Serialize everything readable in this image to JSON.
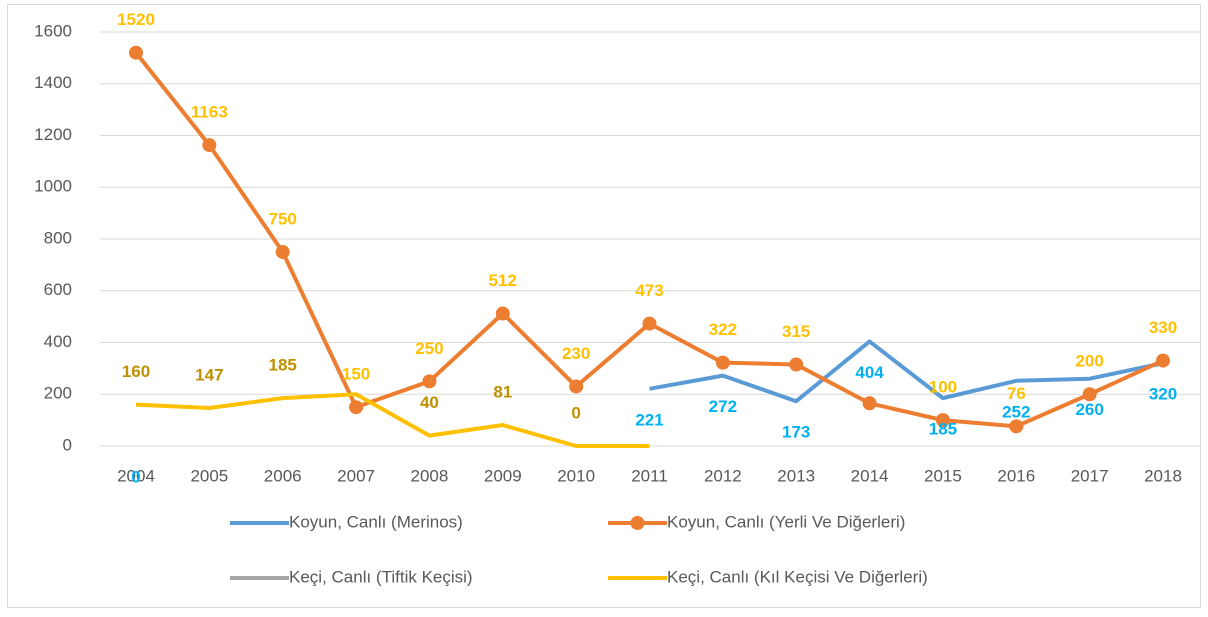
{
  "chart_data": {
    "type": "line",
    "categories": [
      "2004",
      "2005",
      "2006",
      "2007",
      "2008",
      "2009",
      "2010",
      "2011",
      "2012",
      "2013",
      "2014",
      "2015",
      "2016",
      "2017",
      "2018"
    ],
    "ylim": [
      0,
      1600
    ],
    "yticks": [
      0,
      200,
      400,
      600,
      800,
      1000,
      1200,
      1400,
      1600
    ],
    "grid": true,
    "legend": "bottom",
    "series": [
      {
        "name": "Koyun, Canlı (Merinos)",
        "color": "#5b9bd5",
        "label_color": "#00b0f0",
        "label_side": "below",
        "values": [
          0,
          null,
          null,
          null,
          null,
          null,
          null,
          221,
          272,
          173,
          404,
          185,
          252,
          260,
          320
        ],
        "value_labels": [
          "0",
          null,
          null,
          null,
          null,
          null,
          null,
          "221",
          "272",
          "173",
          "404",
          "185",
          "252",
          "260",
          "320"
        ]
      },
      {
        "name": "Koyun, Canlı (Yerli Ve Diğerleri)",
        "color": "#ed7d31",
        "label_color": "#ffc000",
        "label_side": "above",
        "marker": true,
        "values": [
          1520,
          1163,
          750,
          150,
          250,
          512,
          230,
          473,
          322,
          315,
          165,
          100,
          76,
          200,
          330
        ],
        "value_labels": [
          "1520",
          "1163",
          "750",
          "150",
          "250",
          "512",
          "230",
          "473",
          "322",
          "315",
          null,
          "100",
          "76",
          "200",
          "330"
        ]
      },
      {
        "name": "Keçi, Canlı (Tiftik Keçisi)",
        "color": "#a5a5a5",
        "values": [
          null,
          null,
          null,
          null,
          null,
          null,
          null,
          null,
          null,
          null,
          null,
          null,
          null,
          null,
          null
        ]
      },
      {
        "name": "Keçi, Canlı (Kıl Keçisi Ve Diğerleri)",
        "color": "#ffc000",
        "label_color": "#bf9000",
        "label_side": "above",
        "values": [
          160,
          147,
          185,
          200,
          40,
          81,
          0,
          0,
          null,
          null,
          null,
          null,
          null,
          null,
          null
        ],
        "value_labels": [
          "160",
          "147",
          "185",
          null,
          "40",
          "81",
          "0",
          null,
          null,
          null,
          null,
          null,
          null,
          null,
          null
        ]
      }
    ]
  }
}
